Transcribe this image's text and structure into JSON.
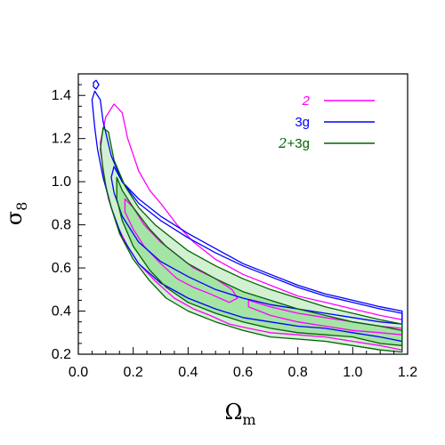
{
  "chart_data": {
    "type": "contour",
    "title": "",
    "xlabel": {
      "symbol": "Ω",
      "subscript": "m"
    },
    "ylabel": {
      "symbol": "σ",
      "subscript": "8"
    },
    "xlim": [
      0.0,
      1.2
    ],
    "ylim": [
      0.2,
      1.5
    ],
    "x_ticks": [
      "0.0",
      "0.2",
      "0.4",
      "0.6",
      "0.8",
      "1.0",
      "1.2"
    ],
    "y_ticks": [
      "0.2",
      "0.4",
      "0.6",
      "0.8",
      "1.0",
      "1.2",
      "1.4"
    ],
    "grid": false,
    "legend_position": "top-right",
    "series": [
      {
        "name": "2",
        "color": "#ff00ff",
        "italic": true,
        "contours": [
          {
            "level": "outer",
            "points": [
              [
                0.08,
                1.18
              ],
              [
                0.1,
                1.3
              ],
              [
                0.13,
                1.36
              ],
              [
                0.16,
                1.32
              ],
              [
                0.18,
                1.2
              ],
              [
                0.22,
                1.05
              ],
              [
                0.26,
                0.96
              ],
              [
                0.3,
                0.9
              ],
              [
                0.36,
                0.8
              ],
              [
                0.42,
                0.72
              ],
              [
                0.5,
                0.64
              ],
              [
                0.6,
                0.57
              ],
              [
                0.7,
                0.52
              ],
              [
                0.8,
                0.47
              ],
              [
                0.9,
                0.44
              ],
              [
                1.0,
                0.41
              ],
              [
                1.1,
                0.38
              ],
              [
                1.18,
                0.36
              ],
              [
                1.18,
                0.22
              ],
              [
                1.1,
                0.24
              ],
              [
                1.0,
                0.26
              ],
              [
                0.9,
                0.28
              ],
              [
                0.8,
                0.29
              ],
              [
                0.7,
                0.3
              ],
              [
                0.62,
                0.32
              ],
              [
                0.55,
                0.34
              ],
              [
                0.48,
                0.38
              ],
              [
                0.42,
                0.41
              ],
              [
                0.35,
                0.46
              ],
              [
                0.28,
                0.54
              ],
              [
                0.22,
                0.62
              ],
              [
                0.18,
                0.7
              ],
              [
                0.14,
                0.8
              ],
              [
                0.11,
                0.92
              ],
              [
                0.09,
                1.05
              ],
              [
                0.08,
                1.18
              ]
            ]
          },
          {
            "level": "inner",
            "points": [
              [
                0.17,
                0.92
              ],
              [
                0.2,
                0.88
              ],
              [
                0.24,
                0.8
              ],
              [
                0.3,
                0.72
              ],
              [
                0.36,
                0.66
              ],
              [
                0.42,
                0.6
              ],
              [
                0.5,
                0.55
              ],
              [
                0.56,
                0.5
              ],
              [
                0.58,
                0.46
              ],
              [
                0.55,
                0.44
              ],
              [
                0.48,
                0.48
              ],
              [
                0.42,
                0.51
              ],
              [
                0.36,
                0.55
              ],
              [
                0.3,
                0.62
              ],
              [
                0.24,
                0.7
              ],
              [
                0.2,
                0.78
              ],
              [
                0.17,
                0.86
              ],
              [
                0.17,
                0.92
              ]
            ]
          },
          {
            "level": "inner",
            "points": [
              [
                0.62,
                0.45
              ],
              [
                0.7,
                0.42
              ],
              [
                0.8,
                0.39
              ],
              [
                0.9,
                0.37
              ],
              [
                1.0,
                0.35
              ],
              [
                1.1,
                0.33
              ],
              [
                1.18,
                0.32
              ],
              [
                1.18,
                0.29
              ],
              [
                1.1,
                0.3
              ],
              [
                1.0,
                0.31
              ],
              [
                0.9,
                0.33
              ],
              [
                0.8,
                0.35
              ],
              [
                0.7,
                0.38
              ],
              [
                0.62,
                0.42
              ],
              [
                0.62,
                0.45
              ]
            ]
          }
        ]
      },
      {
        "name": "3g",
        "color": "#0000ff",
        "italic": false,
        "contours": [
          {
            "level": "outer",
            "points": [
              [
                0.05,
                1.38
              ],
              [
                0.06,
                1.42
              ],
              [
                0.08,
                1.38
              ],
              [
                0.09,
                1.28
              ],
              [
                0.12,
                1.12
              ],
              [
                0.16,
                1.0
              ],
              [
                0.22,
                0.9
              ],
              [
                0.3,
                0.82
              ],
              [
                0.4,
                0.74
              ],
              [
                0.5,
                0.67
              ],
              [
                0.6,
                0.61
              ],
              [
                0.7,
                0.56
              ],
              [
                0.8,
                0.51
              ],
              [
                0.9,
                0.47
              ],
              [
                1.0,
                0.44
              ],
              [
                1.1,
                0.41
              ],
              [
                1.18,
                0.39
              ],
              [
                1.18,
                0.26
              ],
              [
                1.1,
                0.28
              ],
              [
                1.0,
                0.3
              ],
              [
                0.9,
                0.32
              ],
              [
                0.8,
                0.33
              ],
              [
                0.7,
                0.35
              ],
              [
                0.6,
                0.37
              ],
              [
                0.5,
                0.41
              ],
              [
                0.4,
                0.46
              ],
              [
                0.3,
                0.53
              ],
              [
                0.22,
                0.62
              ],
              [
                0.16,
                0.74
              ],
              [
                0.12,
                0.88
              ],
              [
                0.09,
                1.02
              ],
              [
                0.07,
                1.15
              ],
              [
                0.06,
                1.25
              ],
              [
                0.05,
                1.38
              ]
            ]
          },
          {
            "level": "inner",
            "points": [
              [
                0.13,
                1.07
              ],
              [
                0.16,
                1.0
              ],
              [
                0.22,
                0.92
              ],
              [
                0.3,
                0.84
              ],
              [
                0.4,
                0.76
              ],
              [
                0.5,
                0.69
              ],
              [
                0.6,
                0.62
              ],
              [
                0.7,
                0.57
              ],
              [
                0.8,
                0.52
              ],
              [
                0.9,
                0.48
              ],
              [
                1.0,
                0.45
              ],
              [
                1.1,
                0.42
              ],
              [
                1.18,
                0.4
              ],
              [
                1.18,
                0.34
              ],
              [
                1.1,
                0.35
              ],
              [
                1.0,
                0.37
              ],
              [
                0.9,
                0.39
              ],
              [
                0.8,
                0.41
              ],
              [
                0.7,
                0.43
              ],
              [
                0.6,
                0.46
              ],
              [
                0.5,
                0.5
              ],
              [
                0.4,
                0.56
              ],
              [
                0.3,
                0.63
              ],
              [
                0.22,
                0.72
              ],
              [
                0.16,
                0.84
              ],
              [
                0.13,
                0.95
              ],
              [
                0.12,
                1.02
              ],
              [
                0.13,
                1.07
              ]
            ]
          },
          {
            "level": "outer",
            "points": [
              [
                0.055,
                1.46
              ],
              [
                0.065,
                1.47
              ],
              [
                0.075,
                1.45
              ],
              [
                0.065,
                1.43
              ],
              [
                0.055,
                1.44
              ],
              [
                0.055,
                1.46
              ]
            ]
          }
        ]
      },
      {
        "name": "2+3g",
        "color": "#006400",
        "italic_prefix": "2",
        "fill": "#7dd87d",
        "contours": [
          {
            "level": "outer",
            "points": [
              [
                0.08,
                1.15
              ],
              [
                0.09,
                1.25
              ],
              [
                0.11,
                1.23
              ],
              [
                0.13,
                1.1
              ],
              [
                0.17,
                0.98
              ],
              [
                0.22,
                0.88
              ],
              [
                0.28,
                0.8
              ],
              [
                0.34,
                0.74
              ],
              [
                0.4,
                0.68
              ],
              [
                0.5,
                0.61
              ],
              [
                0.6,
                0.55
              ],
              [
                0.7,
                0.5
              ],
              [
                0.8,
                0.46
              ],
              [
                0.9,
                0.42
              ],
              [
                1.0,
                0.39
              ],
              [
                1.1,
                0.36
              ],
              [
                1.18,
                0.34
              ],
              [
                1.18,
                0.21
              ],
              [
                1.1,
                0.22
              ],
              [
                1.0,
                0.24
              ],
              [
                0.9,
                0.26
              ],
              [
                0.8,
                0.27
              ],
              [
                0.7,
                0.28
              ],
              [
                0.6,
                0.31
              ],
              [
                0.5,
                0.35
              ],
              [
                0.4,
                0.4
              ],
              [
                0.32,
                0.46
              ],
              [
                0.26,
                0.54
              ],
              [
                0.2,
                0.64
              ],
              [
                0.15,
                0.76
              ],
              [
                0.12,
                0.88
              ],
              [
                0.1,
                0.98
              ],
              [
                0.09,
                1.06
              ],
              [
                0.08,
                1.15
              ]
            ]
          },
          {
            "level": "inner",
            "points": [
              [
                0.14,
                1.02
              ],
              [
                0.16,
                0.96
              ],
              [
                0.2,
                0.88
              ],
              [
                0.26,
                0.78
              ],
              [
                0.32,
                0.7
              ],
              [
                0.4,
                0.62
              ],
              [
                0.5,
                0.55
              ],
              [
                0.6,
                0.49
              ],
              [
                0.7,
                0.45
              ],
              [
                0.8,
                0.41
              ],
              [
                0.9,
                0.38
              ],
              [
                1.0,
                0.35
              ],
              [
                1.1,
                0.33
              ],
              [
                1.18,
                0.31
              ],
              [
                1.18,
                0.24
              ],
              [
                1.1,
                0.25
              ],
              [
                1.0,
                0.28
              ],
              [
                0.9,
                0.29
              ],
              [
                0.8,
                0.3
              ],
              [
                0.7,
                0.32
              ],
              [
                0.6,
                0.35
              ],
              [
                0.5,
                0.39
              ],
              [
                0.4,
                0.44
              ],
              [
                0.32,
                0.51
              ],
              [
                0.26,
                0.59
              ],
              [
                0.2,
                0.7
              ],
              [
                0.16,
                0.82
              ],
              [
                0.14,
                0.92
              ],
              [
                0.14,
                1.02
              ]
            ]
          }
        ]
      }
    ]
  }
}
